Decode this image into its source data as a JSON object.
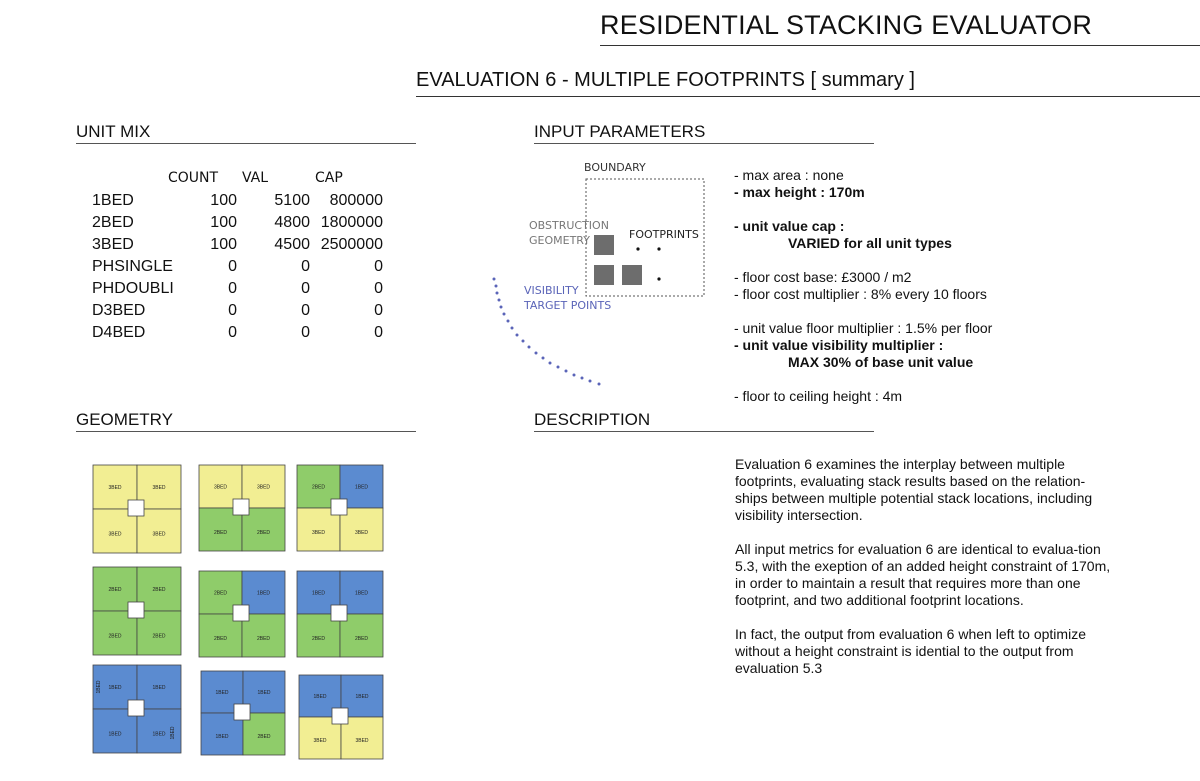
{
  "header": {
    "title": "RESIDENTIAL STACKING EVALUATOR",
    "subtitle": "EVALUATION 6 - MULTIPLE FOOTPRINTS  [ summary ]"
  },
  "sections": {
    "unit_mix": "UNIT MIX",
    "input_parameters": "INPUT PARAMETERS",
    "geometry": "GEOMETRY",
    "description": "DESCRIPTION"
  },
  "unit_mix": {
    "headers": {
      "count": "COUNT",
      "val": "VAL",
      "cap": "CAP"
    },
    "rows": [
      {
        "name": "1BED",
        "count": "100",
        "val": "5100",
        "cap": "800000"
      },
      {
        "name": "2BED",
        "count": "100",
        "val": "4800",
        "cap": "1800000"
      },
      {
        "name": "3BED",
        "count": "100",
        "val": "4500",
        "cap": "2500000"
      },
      {
        "name": "PHSINGLE",
        "count": "0",
        "val": "0",
        "cap": "0"
      },
      {
        "name": "PHDOUBLI",
        "count": "0",
        "val": "0",
        "cap": "0"
      },
      {
        "name": "D3BED",
        "count": "0",
        "val": "0",
        "cap": "0"
      },
      {
        "name": "D4BED",
        "count": "0",
        "val": "0",
        "cap": "0"
      }
    ]
  },
  "diagram": {
    "boundary": "BOUNDARY",
    "obstruction_1": "OBSTRUCTION",
    "obstruction_2": "GEOMETRY",
    "footprints": "FOOTPRINTS",
    "visibility_1": "VISIBILITY",
    "visibility_2": "TARGET POINTS"
  },
  "parameters": {
    "max_area": "- max area : none",
    "max_height": "- max height : 170m",
    "unit_value_cap": "- unit value cap :",
    "unit_value_cap_detail": "VARIED for all unit types",
    "floor_cost_base": "- floor cost base: £3000 / m2",
    "floor_cost_multiplier": "- floor cost multiplier : 8% every 10 floors",
    "unit_value_floor_multiplier": "- unit value floor multiplier : 1.5% per floor",
    "unit_value_visibility_multiplier": "- unit value visibility multiplier :",
    "unit_value_visibility_detail": "MAX 30% of base unit value",
    "floor_to_ceiling": "- floor to ceiling height : 4m"
  },
  "description": {
    "p1": "Evaluation 6 examines the interplay between multiple footprints, evaluating stack results based on the relation-ships between multiple potential stack locations, including visibility intersection.",
    "p2": "All input metrics for evaluation 6 are identical to evalua-tion 5.3, with the exeption of an added height constraint of 170m,  in order to maintain a result that requires more than one footprint, and two additional footprint locations.",
    "p3": "In fact, the output from evaluation 6 when left to optimize without a height constraint is idential to the output from evaluation 5.3"
  },
  "geometry_labels": {
    "b1": "1BED",
    "b2": "2BED",
    "b3": "3BED"
  },
  "colors": {
    "bed1": "#5b8bd0",
    "bed2": "#8fcc6a",
    "bed3": "#f2ee93",
    "obstruction": "#6d6d6d",
    "visibility": "#5a64b8"
  }
}
